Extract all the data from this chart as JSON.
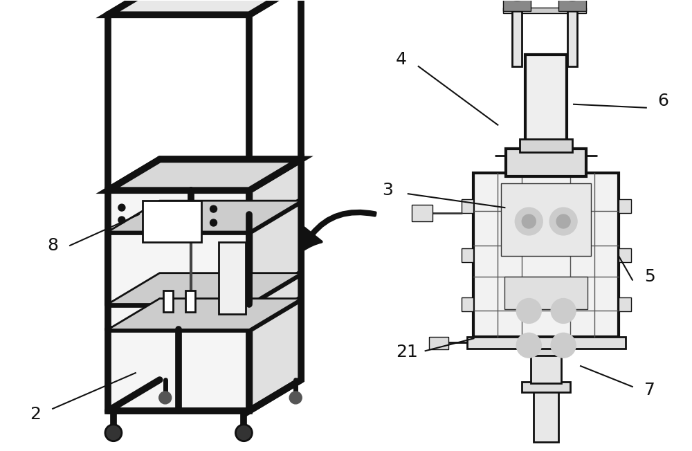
{
  "bg_color": "#ffffff",
  "line_color": "#111111",
  "fill_dark": "#1a1a1a",
  "fill_light": "#f0f0f0",
  "fill_mid": "#cccccc",
  "figsize": [
    10.0,
    6.52
  ],
  "dpi": 100,
  "lw_thick": 8,
  "lw_main": 3,
  "lw_med": 2,
  "lw_thin": 1,
  "label_fontsize": 18
}
